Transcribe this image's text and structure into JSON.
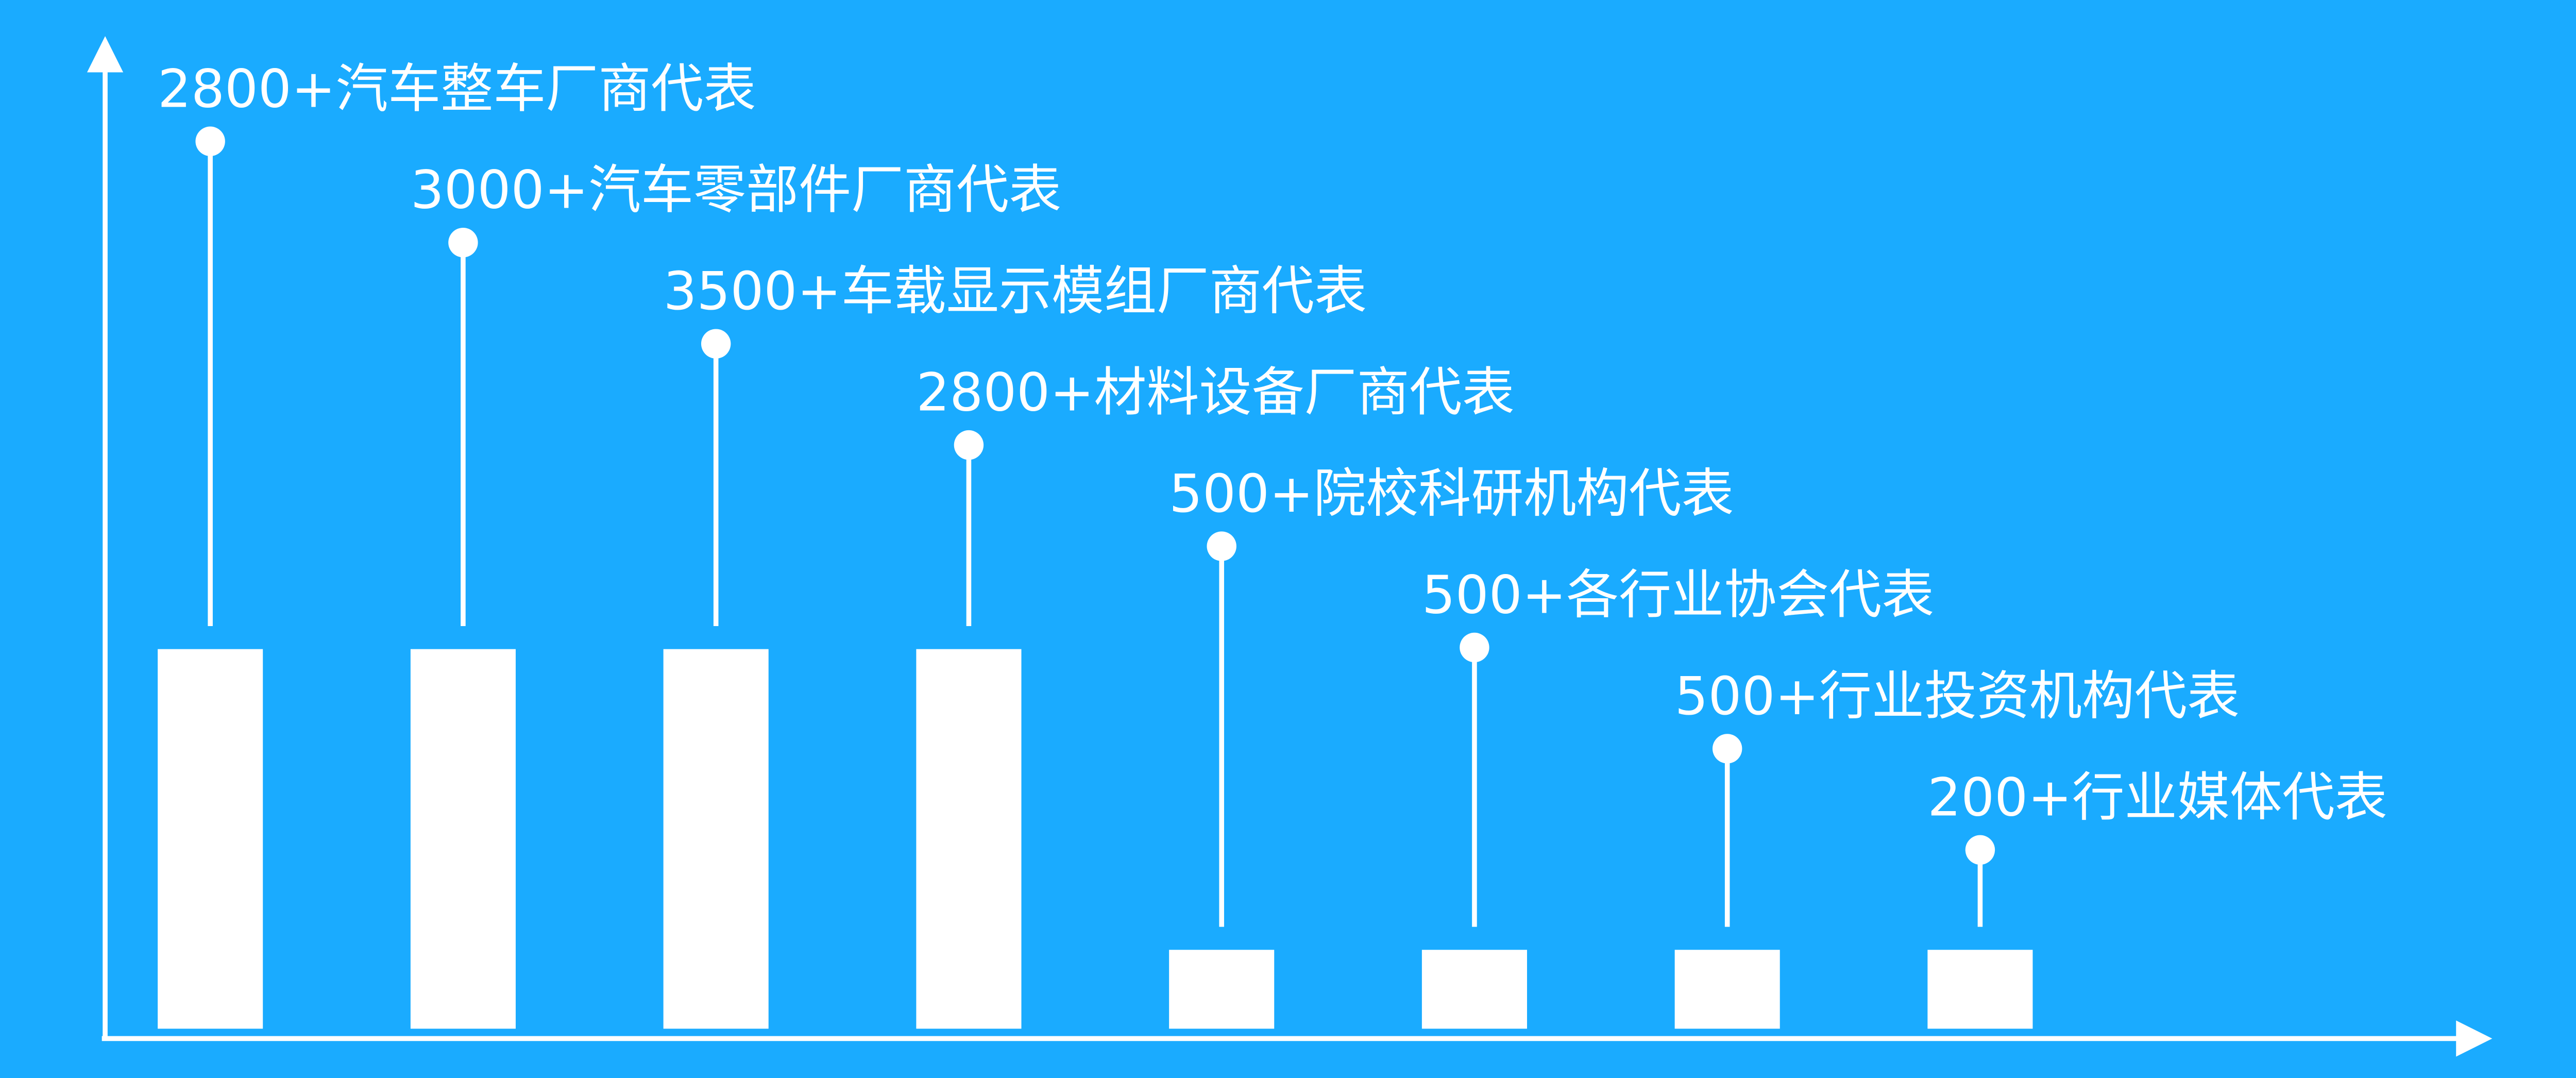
{
  "chart_data": {
    "type": "bar",
    "title": "",
    "xlabel": "",
    "ylabel": "",
    "grid": false,
    "legend": "none",
    "categories": [
      "汽车整车厂商代表",
      "汽车零部件厂商代表",
      "车载显示模组厂商代表",
      "材料设备厂商代表",
      "院校科研机构代表",
      "各行业协会代表",
      "行业投资机构代表",
      "行业媒体代表"
    ],
    "values": [
      2800,
      3000,
      3500,
      2800,
      500,
      500,
      500,
      200
    ],
    "labels": [
      "2800+汽车整车厂商代表",
      "3000+汽车零部件厂商代表",
      "3500+车载显示模组厂商代表",
      "2800+材料设备厂商代表",
      "500+院校科研机构代表",
      "500+各行业协会代表",
      "500+行业投资机构代表",
      "200+行业媒体代表"
    ],
    "colors": {
      "background": "#1aabff",
      "marks": "#ffffff"
    }
  }
}
